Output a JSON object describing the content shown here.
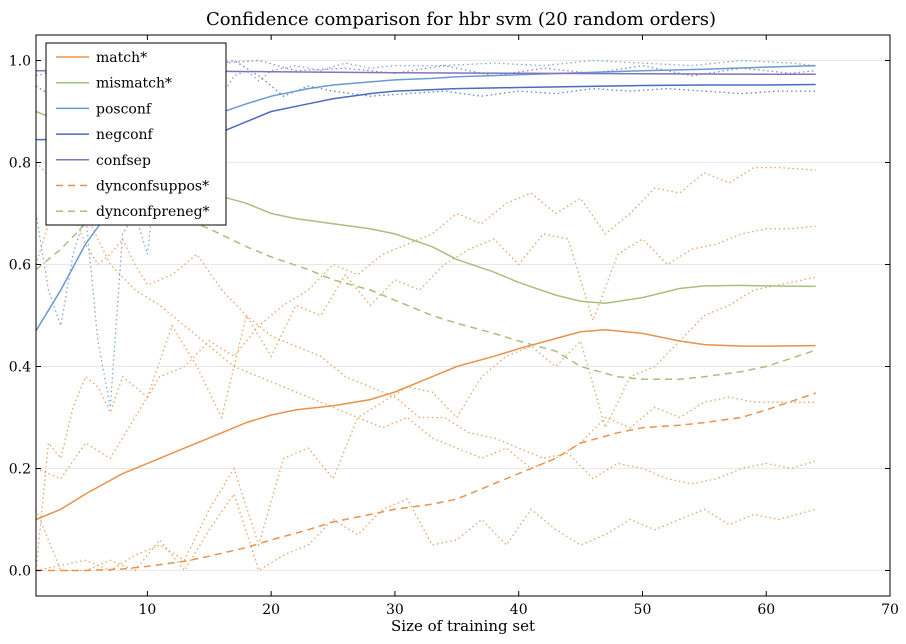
{
  "chart_data": {
    "type": "line",
    "title": "Confidence comparison for hbr svm (20 random orders)",
    "xlabel": "Size of training set",
    "ylabel": "",
    "xlim": [
      1,
      70
    ],
    "ylim": [
      -0.05,
      1.05
    ],
    "xticks": [
      10,
      20,
      30,
      40,
      50,
      60,
      70
    ],
    "yticks": [
      0.0,
      0.2,
      0.4,
      0.6,
      0.8,
      1.0
    ],
    "xtick_labels": [
      "10",
      "20",
      "30",
      "40",
      "50",
      "60",
      "70"
    ],
    "ytick_labels": [
      "0.0",
      "0.2",
      "0.4",
      "0.6",
      "0.8",
      "1.0"
    ],
    "grid": "horizontal",
    "legend_position": "top-left",
    "series": [
      {
        "name": "match*",
        "color": "#e8924a",
        "dash": "solid",
        "x": [
          1,
          3,
          5,
          8,
          10,
          13,
          15,
          18,
          20,
          22,
          25,
          28,
          30,
          33,
          35,
          38,
          40,
          43,
          45,
          47,
          50,
          53,
          55,
          58,
          60,
          64
        ],
        "values": [
          0.1,
          0.12,
          0.15,
          0.19,
          0.21,
          0.24,
          0.26,
          0.29,
          0.305,
          0.315,
          0.323,
          0.335,
          0.35,
          0.38,
          0.4,
          0.42,
          0.435,
          0.455,
          0.468,
          0.472,
          0.465,
          0.45,
          0.443,
          0.44,
          0.44,
          0.441
        ]
      },
      {
        "name": "mismatch*",
        "color": "#a8bf7e",
        "dash": "solid",
        "x": [
          1,
          3,
          5,
          8,
          10,
          13,
          15,
          18,
          20,
          22,
          25,
          28,
          30,
          33,
          35,
          38,
          40,
          43,
          45,
          47,
          50,
          53,
          55,
          58,
          60,
          64
        ],
        "values": [
          0.9,
          0.88,
          0.84,
          0.8,
          0.78,
          0.76,
          0.74,
          0.72,
          0.7,
          0.69,
          0.68,
          0.67,
          0.66,
          0.635,
          0.61,
          0.585,
          0.565,
          0.54,
          0.528,
          0.524,
          0.535,
          0.553,
          0.558,
          0.559,
          0.558,
          0.557
        ]
      },
      {
        "name": "posconf",
        "color": "#6a9ad0",
        "dash": "solid",
        "x": [
          1,
          3,
          5,
          8,
          10,
          13,
          15,
          18,
          20,
          23,
          25,
          28,
          30,
          33,
          35,
          40,
          45,
          50,
          55,
          60,
          64
        ],
        "values": [
          0.47,
          0.55,
          0.64,
          0.74,
          0.8,
          0.86,
          0.89,
          0.915,
          0.93,
          0.945,
          0.952,
          0.958,
          0.962,
          0.965,
          0.968,
          0.972,
          0.976,
          0.98,
          0.983,
          0.987,
          0.99
        ]
      },
      {
        "name": "negconf",
        "color": "#4a6bbf",
        "dash": "solid",
        "x": [
          1,
          3,
          5,
          8,
          10,
          13,
          15,
          18,
          20,
          23,
          25,
          28,
          30,
          33,
          35,
          40,
          45,
          50,
          55,
          60,
          64
        ],
        "values": [
          0.845,
          0.845,
          0.83,
          0.825,
          0.83,
          0.84,
          0.85,
          0.88,
          0.9,
          0.915,
          0.925,
          0.935,
          0.94,
          0.943,
          0.945,
          0.947,
          0.949,
          0.951,
          0.952,
          0.952,
          0.953
        ]
      },
      {
        "name": "confsep",
        "color": "#7e74c0",
        "dash": "solid",
        "x": [
          1,
          5,
          10,
          15,
          20,
          30,
          40,
          50,
          60,
          64
        ],
        "values": [
          0.98,
          0.98,
          0.98,
          0.979,
          0.978,
          0.976,
          0.975,
          0.974,
          0.973,
          0.973
        ]
      },
      {
        "name": "dynconfsuppos*",
        "color": "#e8924a",
        "dash": "dashed",
        "x": [
          1,
          5,
          8,
          10,
          13,
          15,
          18,
          20,
          23,
          25,
          28,
          30,
          33,
          35,
          38,
          40,
          43,
          45,
          48,
          50,
          53,
          55,
          58,
          60,
          64
        ],
        "values": [
          0.0,
          0.0,
          0.003,
          0.008,
          0.018,
          0.028,
          0.045,
          0.06,
          0.08,
          0.095,
          0.11,
          0.12,
          0.13,
          0.14,
          0.17,
          0.19,
          0.22,
          0.25,
          0.27,
          0.28,
          0.285,
          0.29,
          0.3,
          0.315,
          0.348
        ]
      },
      {
        "name": "dynconfpreneg*",
        "color": "#a8bf7e",
        "dash": "dashed",
        "x": [
          1,
          3,
          5,
          8,
          10,
          13,
          15,
          18,
          20,
          23,
          25,
          28,
          30,
          33,
          35,
          38,
          40,
          43,
          45,
          48,
          50,
          53,
          55,
          58,
          60,
          64
        ],
        "values": [
          0.59,
          0.63,
          0.68,
          0.715,
          0.72,
          0.69,
          0.67,
          0.635,
          0.615,
          0.59,
          0.57,
          0.55,
          0.53,
          0.5,
          0.485,
          0.465,
          0.45,
          0.43,
          0.4,
          0.38,
          0.375,
          0.375,
          0.38,
          0.39,
          0.4,
          0.432
        ]
      }
    ],
    "background_series": [
      {
        "color": "#e8924a",
        "x": [
          1,
          2,
          3,
          4,
          5,
          6,
          7,
          8,
          9,
          10,
          12,
          14,
          16,
          18,
          20,
          22,
          24,
          26,
          28,
          30,
          32,
          34,
          36,
          38,
          40,
          42,
          44,
          46,
          48,
          50,
          52,
          54,
          56,
          58,
          60,
          62,
          64
        ],
        "values": [
          0.0,
          0.25,
          0.22,
          0.32,
          0.38,
          0.36,
          0.31,
          0.38,
          0.36,
          0.34,
          0.48,
          0.4,
          0.3,
          0.5,
          0.42,
          0.52,
          0.5,
          0.58,
          0.52,
          0.57,
          0.55,
          0.6,
          0.63,
          0.65,
          0.6,
          0.66,
          0.65,
          0.49,
          0.62,
          0.65,
          0.6,
          0.63,
          0.64,
          0.66,
          0.67,
          0.67,
          0.675
        ]
      },
      {
        "color": "#e8924a",
        "x": [
          1,
          2,
          3,
          4,
          5,
          6,
          7,
          8,
          9,
          10,
          12,
          14,
          16,
          18,
          20,
          22,
          24,
          26,
          28,
          30,
          32,
          34,
          36,
          38,
          40,
          42,
          44,
          46,
          48,
          50,
          52,
          54,
          56,
          58,
          60,
          62,
          64
        ],
        "values": [
          0.6,
          0.68,
          0.72,
          0.7,
          0.64,
          0.6,
          0.62,
          0.65,
          0.6,
          0.56,
          0.58,
          0.62,
          0.55,
          0.5,
          0.46,
          0.44,
          0.42,
          0.38,
          0.36,
          0.34,
          0.3,
          0.3,
          0.27,
          0.26,
          0.24,
          0.22,
          0.23,
          0.18,
          0.21,
          0.2,
          0.18,
          0.17,
          0.18,
          0.2,
          0.21,
          0.2,
          0.215
        ]
      },
      {
        "color": "#e8924a",
        "x": [
          1,
          3,
          5,
          7,
          9,
          11,
          13,
          15,
          17,
          19,
          21,
          23,
          25,
          27,
          29,
          31,
          33,
          35,
          37,
          39,
          41,
          43,
          45,
          47,
          49,
          51,
          53,
          55,
          57,
          59,
          61,
          64
        ],
        "values": [
          0.12,
          0.0,
          0.0,
          0.02,
          0.0,
          0.06,
          0.0,
          0.08,
          0.15,
          0.0,
          0.03,
          0.05,
          0.1,
          0.07,
          0.12,
          0.14,
          0.05,
          0.06,
          0.1,
          0.05,
          0.12,
          0.08,
          0.05,
          0.07,
          0.1,
          0.08,
          0.1,
          0.12,
          0.09,
          0.11,
          0.1,
          0.12
        ]
      },
      {
        "color": "#e8924a",
        "x": [
          1,
          3,
          5,
          7,
          9,
          11,
          13,
          15,
          17,
          19,
          21,
          23,
          25,
          27,
          29,
          31,
          33,
          35,
          37,
          39,
          41,
          43,
          45,
          47,
          49,
          51,
          53,
          55,
          57,
          59,
          61,
          64
        ],
        "values": [
          0.2,
          0.18,
          0.25,
          0.22,
          0.3,
          0.38,
          0.4,
          0.45,
          0.42,
          0.48,
          0.52,
          0.55,
          0.6,
          0.58,
          0.62,
          0.64,
          0.66,
          0.7,
          0.68,
          0.72,
          0.74,
          0.7,
          0.73,
          0.66,
          0.7,
          0.75,
          0.74,
          0.78,
          0.76,
          0.79,
          0.79,
          0.785
        ]
      },
      {
        "color": "#e8924a",
        "x": [
          1,
          3,
          5,
          7,
          9,
          11,
          13,
          15,
          17,
          19,
          21,
          23,
          25,
          27,
          29,
          31,
          33,
          35,
          37,
          39,
          41,
          43,
          45,
          47,
          49,
          51,
          53,
          55,
          57,
          59,
          61,
          64
        ],
        "values": [
          0.0,
          0.01,
          0.02,
          0.0,
          0.03,
          0.05,
          0.02,
          0.12,
          0.2,
          0.05,
          0.22,
          0.24,
          0.18,
          0.3,
          0.33,
          0.36,
          0.35,
          0.3,
          0.38,
          0.42,
          0.44,
          0.4,
          0.45,
          0.28,
          0.38,
          0.4,
          0.45,
          0.5,
          0.52,
          0.55,
          0.56,
          0.575
        ]
      },
      {
        "color": "#e8924a",
        "x": [
          1,
          3,
          5,
          7,
          9,
          11,
          13,
          15,
          17,
          19,
          21,
          23,
          25,
          27,
          29,
          31,
          33,
          35,
          37,
          39,
          41,
          43,
          45,
          47,
          49,
          51,
          53,
          55,
          57,
          59,
          61,
          64
        ],
        "values": [
          0.8,
          0.75,
          0.7,
          0.6,
          0.55,
          0.52,
          0.48,
          0.44,
          0.4,
          0.38,
          0.36,
          0.34,
          0.32,
          0.3,
          0.28,
          0.3,
          0.26,
          0.24,
          0.22,
          0.24,
          0.2,
          0.22,
          0.25,
          0.3,
          0.28,
          0.32,
          0.3,
          0.33,
          0.34,
          0.33,
          0.33,
          0.33
        ]
      },
      {
        "color": "#6a9ad0",
        "x": [
          1,
          2,
          3,
          4,
          5,
          6,
          7,
          8,
          9,
          10,
          11,
          12,
          13,
          14,
          15,
          16,
          17,
          18,
          19,
          20,
          22,
          24,
          26,
          28,
          30,
          34,
          38,
          42,
          46,
          50,
          54,
          58,
          62,
          64
        ],
        "values": [
          0.7,
          0.55,
          0.48,
          0.62,
          0.7,
          0.45,
          0.32,
          0.66,
          0.7,
          0.62,
          0.84,
          0.9,
          0.84,
          0.94,
          0.96,
          0.93,
          0.97,
          0.98,
          0.96,
          0.98,
          0.99,
          0.98,
          0.995,
          0.985,
          0.99,
          0.99,
          0.995,
          0.99,
          1.0,
          0.995,
          0.99,
          1.0,
          0.995,
          0.99
        ]
      },
      {
        "color": "#4a6bbf",
        "x": [
          1,
          3,
          5,
          7,
          9,
          11,
          13,
          15,
          17,
          19,
          21,
          23,
          25,
          28,
          31,
          34,
          37,
          40,
          43,
          46,
          49,
          52,
          55,
          58,
          61,
          64
        ],
        "values": [
          0.95,
          0.92,
          0.98,
          0.96,
          0.93,
          0.97,
          0.98,
          0.99,
          1.0,
          0.97,
          0.93,
          0.95,
          0.94,
          0.93,
          0.935,
          0.94,
          0.93,
          0.94,
          0.935,
          0.945,
          0.94,
          0.945,
          0.94,
          0.935,
          0.94,
          0.94
        ]
      },
      {
        "color": "#7e74c0",
        "x": [
          1,
          4,
          7,
          10,
          13,
          16,
          19,
          22,
          26,
          30,
          34,
          38,
          42,
          46,
          50,
          54,
          58,
          62,
          64
        ],
        "values": [
          0.97,
          0.99,
          0.98,
          0.985,
          0.97,
          0.995,
          1.0,
          0.98,
          0.985,
          0.975,
          0.99,
          0.97,
          0.985,
          0.975,
          0.99,
          0.97,
          0.985,
          0.975,
          0.98
        ]
      }
    ]
  }
}
